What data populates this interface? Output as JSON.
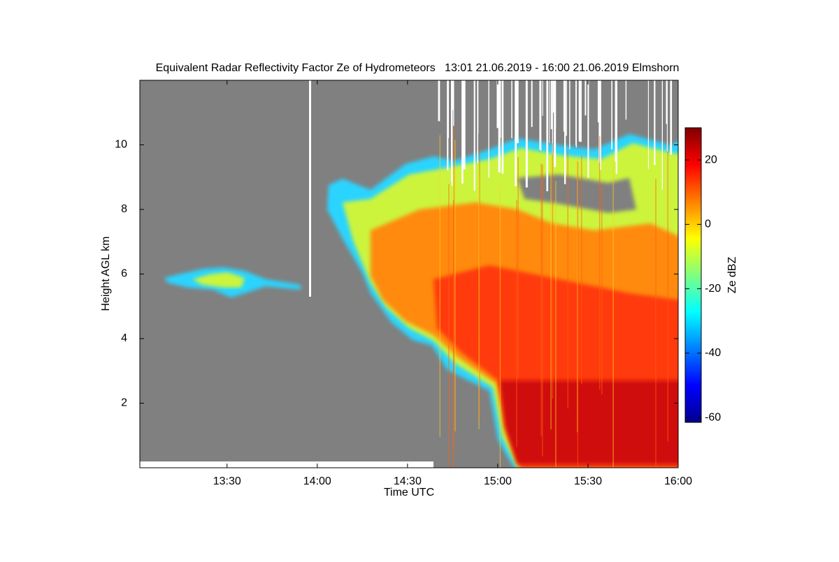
{
  "chart_data": {
    "type": "heatmap",
    "title": "Equivalent Radar Reflectivity Factor Ze of Hydrometeors   13:01 21.06.2019 - 16:00 21.06.2019 Elmshorn",
    "x_label": "Time UTC",
    "y_label": "Height AGL km",
    "colorbar_label": "Ze dBZ",
    "xlim": [
      781,
      960
    ],
    "xticks": [
      {
        "value": 810,
        "label": "13:30"
      },
      {
        "value": 840,
        "label": "14:00"
      },
      {
        "value": 870,
        "label": "14:30"
      },
      {
        "value": 900,
        "label": "15:00"
      },
      {
        "value": 930,
        "label": "15:30"
      },
      {
        "value": 960,
        "label": "16:00"
      }
    ],
    "ylim": [
      0,
      12
    ],
    "yticks": [
      2,
      4,
      6,
      8,
      10
    ],
    "clim": [
      -61.5,
      30
    ],
    "cticks": [
      20,
      0,
      -20,
      -40,
      -60
    ],
    "colormap": "jet",
    "background": "#808080"
  }
}
